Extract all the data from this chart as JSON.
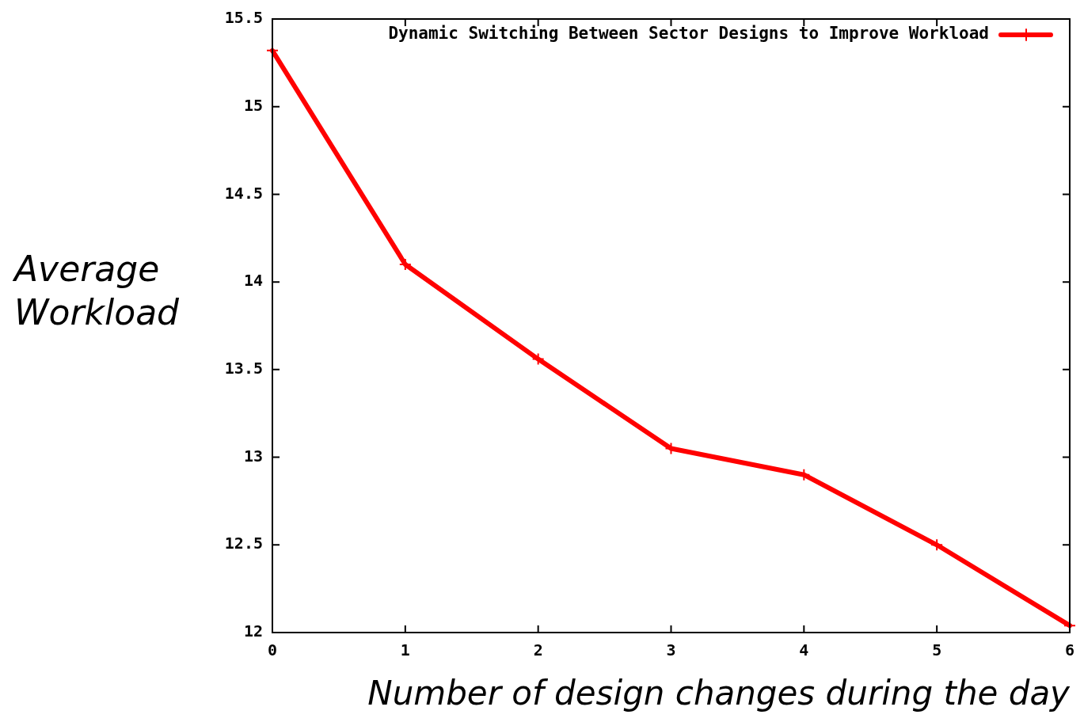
{
  "chart_data": {
    "type": "line",
    "xlabel": "Number of design changes during the day",
    "ylabel": "Average Workload",
    "x": [
      0,
      1,
      2,
      3,
      4,
      5,
      6
    ],
    "series": [
      {
        "name": "Dynamic Switching Between Sector Designs to Improve Workload",
        "color": "#ff0000",
        "values": [
          15.32,
          14.1,
          13.56,
          13.05,
          12.9,
          12.5,
          12.04
        ]
      }
    ],
    "xlim": [
      0,
      6
    ],
    "ylim": [
      12,
      15.5
    ],
    "xticks": [
      0,
      1,
      2,
      3,
      4,
      5,
      6
    ],
    "yticks": [
      12,
      12.5,
      13,
      13.5,
      14,
      14.5,
      15,
      15.5
    ],
    "legend": "top right",
    "marker": "cross",
    "line_style": "solid",
    "grid": false
  }
}
